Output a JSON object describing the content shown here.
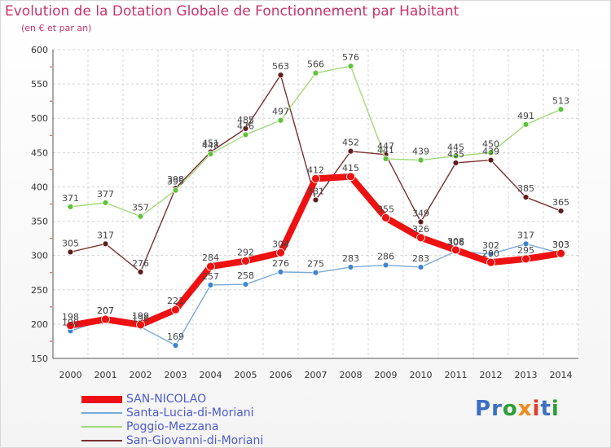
{
  "header": {
    "title": "Evolution de la Dotation Globale de Fonctionnement par Habitant",
    "subtitle": "(en € et par an)"
  },
  "brand": {
    "text": "Proxiti",
    "letters": [
      "P",
      "r",
      "o",
      "x",
      "i",
      "t",
      "i"
    ],
    "colors": [
      "#3c6fc0",
      "#3c6fc0",
      "#2e9e3a",
      "#f08a1c",
      "#e23d2f",
      "#3c6fc0",
      "#2e9e3a"
    ]
  },
  "chart_data": {
    "type": "line",
    "title": "Evolution de la Dotation Globale de Fonctionnement par Habitant",
    "subtitle": "(en € et par an)",
    "x": [
      "2000",
      "2001",
      "2002",
      "2003",
      "2004",
      "2005",
      "2006",
      "2007",
      "2008",
      "2009",
      "2010",
      "2011",
      "2012",
      "2013",
      "2014"
    ],
    "ylim": [
      150,
      600
    ],
    "yticks": [
      "150",
      "200",
      "250",
      "300",
      "350",
      "400",
      "450",
      "500",
      "550",
      "600"
    ],
    "grid": true,
    "legend_position": "bottom-left",
    "series": [
      {
        "name": "SAN-NICOLAO",
        "values": [
          198,
          207,
          199,
          221,
          284,
          292,
          304,
          412,
          415,
          355,
          326,
          308,
          290,
          295,
          303
        ],
        "labels": [
          "198",
          "207",
          "199",
          "221",
          "284",
          "292",
          "304",
          "412",
          "415",
          "355",
          "326",
          "308",
          "290",
          "295",
          "303"
        ],
        "color": "#ee1111",
        "marker": "#ee1111"
      },
      {
        "name": "Santa-Lucia-di-Moriani",
        "values": [
          190,
          207,
          196,
          169,
          257,
          258,
          276,
          275,
          283,
          286,
          283,
          306,
          302,
          317,
          303
        ],
        "labels": [
          "190",
          "207",
          "196",
          "169",
          "257",
          "258",
          "276",
          "275",
          "283",
          "286",
          "283",
          "306",
          "302",
          "317",
          "303"
        ],
        "color": "#7aaad6",
        "marker": "#3e84d0"
      },
      {
        "name": "Poggio-Mezzana",
        "values": [
          371,
          377,
          357,
          395,
          448,
          476,
          497,
          566,
          576,
          441,
          439,
          445,
          450,
          491,
          513
        ],
        "labels": [
          "371",
          "377",
          "357",
          "395",
          "448",
          "476",
          "497",
          "566",
          "576",
          "441",
          "439",
          "445",
          "450",
          "491",
          "513"
        ],
        "color": "#a3d97c",
        "marker": "#5fc236"
      },
      {
        "name": "San-Giovanni-di-Moriani",
        "values": [
          305,
          317,
          276,
          398,
          451,
          485,
          563,
          381,
          452,
          447,
          349,
          435,
          439,
          385,
          365
        ],
        "labels": [
          "305",
          "317",
          "276",
          "398",
          "451",
          "485",
          "563",
          "381",
          "452",
          "447",
          "349",
          "435",
          "439",
          "385",
          "365"
        ],
        "color": "#7a3030",
        "marker": "#5e1c1c"
      }
    ]
  }
}
